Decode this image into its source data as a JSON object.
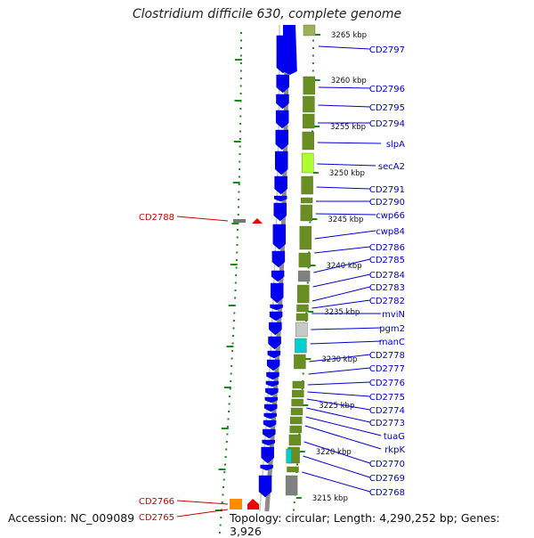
{
  "title": "Clostridium difficile 630, complete genome",
  "footer": {
    "accession": "Accession: NC_009089",
    "summary": "Topology: circular; Length: 4,290,252 bp; Genes: 3,926"
  },
  "colors": {
    "forward_gene": "#0000ee",
    "label_forward": "#0000cc",
    "label_reverse": "#cc0000",
    "cds_default": "#6b8e23",
    "cds_highlight": "#adff2f",
    "cds_cyan": "#00ced1",
    "cds_grey": "#808080",
    "tick": "#1a8a1a"
  },
  "kbp_ticks": [
    "3265 kbp",
    "3260 kbp",
    "3255 kbp",
    "3250 kbp",
    "3245 kbp",
    "3240 kbp",
    "3235 kbp",
    "3230 kbp",
    "3225 kbp",
    "3220 kbp",
    "3215 kbp"
  ],
  "forward_labels": [
    "CD2797",
    "CD2796",
    "CD2795",
    "CD2794",
    "slpA",
    "secA2",
    "CD2791",
    "CD2790",
    "cwp66",
    "cwp84",
    "CD2786",
    "CD2785",
    "CD2784",
    "CD2783",
    "CD2782",
    "mviN",
    "pgm2",
    "manC",
    "CD2778",
    "CD2777",
    "CD2776",
    "CD2775",
    "CD2774",
    "CD2773",
    "tuaG",
    "rkpK",
    "CD2770",
    "CD2769",
    "CD2768"
  ],
  "reverse_labels": [
    "CD2788",
    "CD2766",
    "CD2765"
  ]
}
